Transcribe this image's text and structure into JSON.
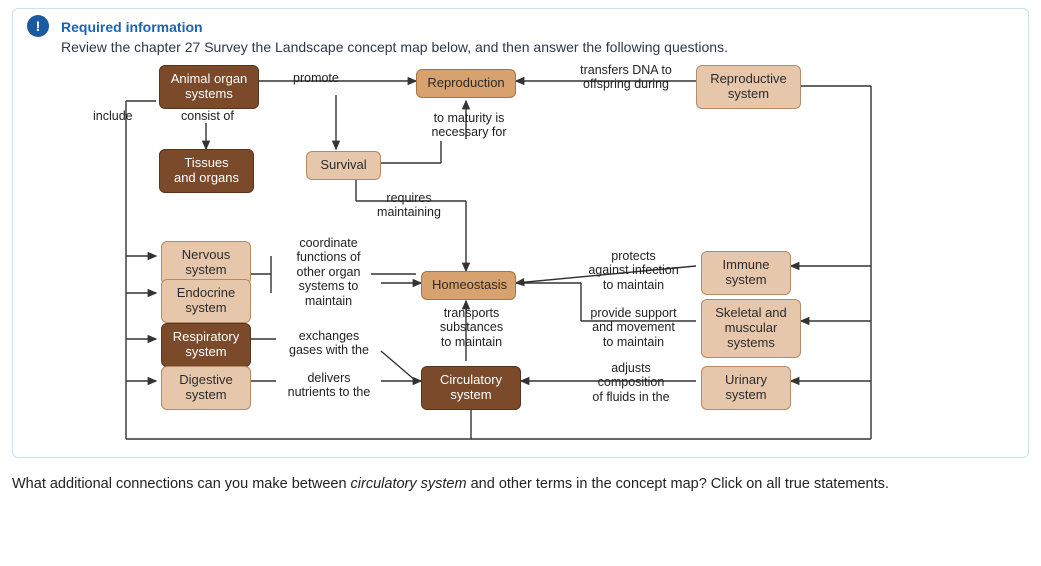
{
  "header": {
    "required_label": "Required information",
    "instructions": "Review the chapter 27 Survey the Landscape concept map below, and then answer the following questions."
  },
  "nodes": {
    "animal_organ_systems": "Animal organ\nsystems",
    "reproduction": "Reproduction",
    "reproductive_system": "Reproductive\nsystem",
    "tissues_organs": "Tissues\nand organs",
    "survival": "Survival",
    "nervous_system": "Nervous\nsystem",
    "endocrine_system": "Endocrine\nsystem",
    "respiratory_system": "Respiratory\nsystem",
    "digestive_system": "Digestive\nsystem",
    "homeostasis": "Homeostasis",
    "circulatory_system": "Circulatory\nsystem",
    "immune_system": "Immune\nsystem",
    "skeletal_muscular": "Skeletal and\nmuscular\nsystems",
    "urinary_system": "Urinary\nsystem"
  },
  "labels": {
    "promote": "promote",
    "transfers": "transfers DNA to\noffspring during",
    "include": "include",
    "consist_of": "consist of",
    "to_maturity": "to maturity is\nnecessary for",
    "requires": "requires\nmaintaining",
    "coordinate": "coordinate\nfunctions of\nother organ\nsystems to\nmaintain",
    "exchanges": "exchanges\ngases with the",
    "delivers": "delivers\nnutrients to the",
    "protects": "protects\nagainst infection\nto maintain",
    "transports": "transports\nsubstances\nto maintain",
    "provide": "provide support\nand movement\nto maintain",
    "adjusts": "adjusts\ncomposition\nof fluids in the"
  },
  "question": {
    "pre": "What additional connections can you make between ",
    "em": "circulatory system",
    "post": " and other terms in the concept map? Click on all true statements."
  },
  "style": {
    "dark_fill": "#7a4a2a",
    "light_fill": "#e7c7ab",
    "mid_fill": "#d7a26d",
    "stroke": "#555555"
  }
}
